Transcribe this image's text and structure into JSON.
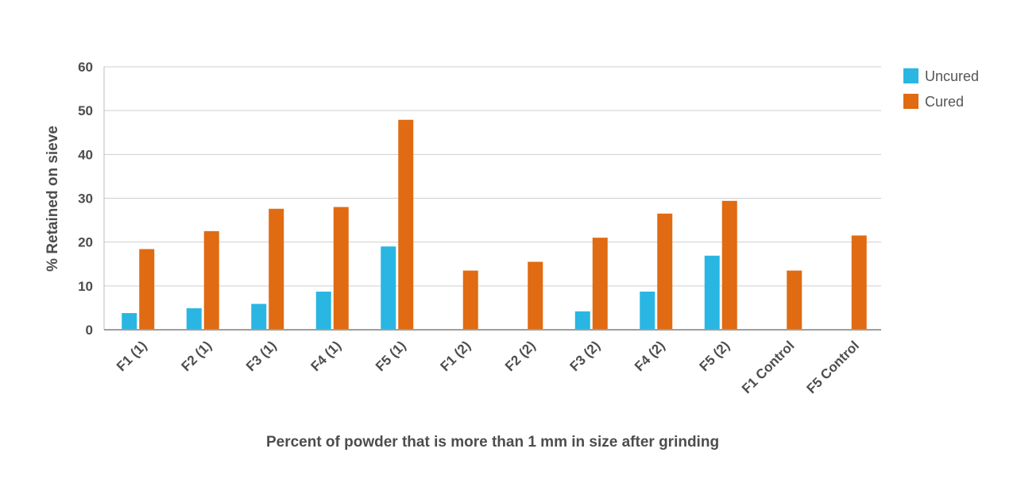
{
  "chart_data": {
    "type": "bar",
    "title": "",
    "xlabel": "Percent of powder that is more than 1 mm in size after grinding",
    "ylabel": "% Retained on sieve",
    "ylim": [
      0,
      60
    ],
    "yticks": [
      0,
      10,
      20,
      30,
      40,
      50,
      60
    ],
    "grid": true,
    "legend_position": "top-right",
    "categories": [
      "F1 (1)",
      "F2 (1)",
      "F3 (1)",
      "F4 (1)",
      "F5 (1)",
      "F1 (2)",
      "F2 (2)",
      "F3 (2)",
      "F4 (2)",
      "F5 (2)",
      "F1 Control",
      "F5 Control"
    ],
    "series": [
      {
        "name": "Uncured",
        "color": "#29b6e3",
        "values": [
          3.8,
          4.9,
          5.9,
          8.7,
          19.0,
          0,
          0,
          4.2,
          8.7,
          16.9,
          0,
          0
        ]
      },
      {
        "name": "Cured",
        "color": "#e06b12",
        "values": [
          18.4,
          22.5,
          27.6,
          28.0,
          47.9,
          13.5,
          15.5,
          21.0,
          26.5,
          29.4,
          13.5,
          21.5
        ]
      }
    ]
  }
}
